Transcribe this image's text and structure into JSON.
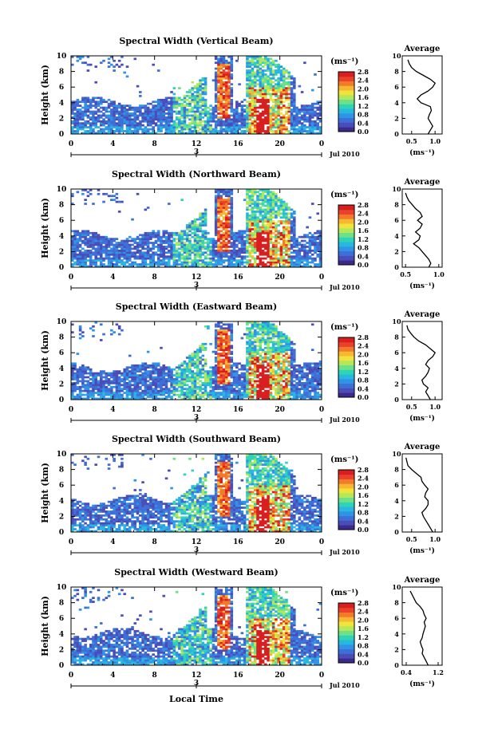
{
  "figure": {
    "xlabel": "Local Time",
    "ylabel": "Height (km)",
    "date_label": "Jul 2010",
    "day_label": "3",
    "avg_title": "Average",
    "colorbar_unit": "(ms⁻¹)",
    "avg_xlabel": "(ms⁻¹)"
  },
  "chart_data": [
    {
      "type": "heatmap",
      "title": "Spectral Width (Vertical Beam)",
      "xlabel": "Local Time",
      "ylabel": "Height (km)",
      "xticks": [
        "0",
        "4",
        "8",
        "12",
        "16",
        "20",
        "0"
      ],
      "xlim": [
        0,
        24
      ],
      "yticks": [
        "0",
        "2",
        "4",
        "6",
        "8",
        "10"
      ],
      "ylim": [
        0,
        10
      ],
      "colorbar": {
        "ticks": [
          "0.0",
          "0.4",
          "0.8",
          "1.2",
          "1.6",
          "2.0",
          "2.4",
          "2.8"
        ],
        "range": [
          0,
          2.8
        ]
      },
      "average": {
        "xticks": [
          "0.5",
          "1.0"
        ],
        "xlim": [
          0.3,
          1.15
        ],
        "x": [
          0.85,
          0.9,
          0.95,
          0.9,
          0.85,
          0.88,
          0.92,
          0.9,
          0.7,
          0.62,
          0.7,
          0.85,
          0.95,
          1.0,
          0.9,
          0.75,
          0.6,
          0.5,
          0.45,
          0.42
        ],
        "y": [
          0,
          0.5,
          1,
          1.5,
          2,
          2.5,
          3,
          3.5,
          4,
          4.5,
          5,
          5.5,
          6,
          6.5,
          7,
          7.5,
          8,
          8.5,
          9,
          9.5
        ]
      }
    },
    {
      "type": "heatmap",
      "title": "Spectral Width (Northward Beam)",
      "xlabel": "Local Time",
      "ylabel": "Height (km)",
      "xticks": [
        "0",
        "4",
        "8",
        "12",
        "16",
        "20",
        "0"
      ],
      "xlim": [
        0,
        24
      ],
      "yticks": [
        "0",
        "2",
        "4",
        "6",
        "8",
        "10"
      ],
      "ylim": [
        0,
        10
      ],
      "colorbar": {
        "ticks": [
          "0.0",
          "0.4",
          "0.8",
          "1.2",
          "1.6",
          "2.0",
          "2.4",
          "2.8"
        ],
        "range": [
          0,
          2.8
        ]
      },
      "average": {
        "xticks": [
          "0.5",
          "1.0"
        ],
        "xlim": [
          0.45,
          1.05
        ],
        "x": [
          0.85,
          0.88,
          0.85,
          0.8,
          0.75,
          0.7,
          0.62,
          0.7,
          0.72,
          0.65,
          0.72,
          0.75,
          0.68,
          0.75,
          0.72,
          0.65,
          0.6,
          0.55,
          0.52,
          0.5
        ],
        "y": [
          0,
          0.5,
          1,
          1.5,
          2,
          2.5,
          3,
          3.5,
          4,
          4.5,
          5,
          5.5,
          6,
          6.5,
          7,
          7.5,
          8,
          8.5,
          9,
          9.5
        ]
      }
    },
    {
      "type": "heatmap",
      "title": "Spectral Width (Eastward Beam)",
      "xlabel": "Local Time",
      "ylabel": "Height (km)",
      "xticks": [
        "0",
        "4",
        "8",
        "12",
        "16",
        "20",
        "0"
      ],
      "xlim": [
        0,
        24
      ],
      "yticks": [
        "0",
        "2",
        "4",
        "6",
        "8",
        "10"
      ],
      "ylim": [
        0,
        10
      ],
      "colorbar": {
        "ticks": [
          "0.0",
          "0.4",
          "0.8",
          "1.2",
          "1.6",
          "2.0",
          "2.4",
          "2.8"
        ],
        "range": [
          0,
          2.8
        ]
      },
      "average": {
        "xticks": [
          "0.5",
          "1.0"
        ],
        "xlim": [
          0.3,
          1.15
        ],
        "x": [
          0.9,
          0.85,
          0.8,
          0.85,
          0.75,
          0.72,
          0.8,
          0.85,
          0.88,
          0.8,
          0.85,
          0.95,
          1.0,
          0.9,
          0.8,
          0.65,
          0.55,
          0.48,
          0.42,
          0.4
        ],
        "y": [
          0,
          0.5,
          1,
          1.5,
          2,
          2.5,
          3,
          3.5,
          4,
          4.5,
          5,
          5.5,
          6,
          6.5,
          7,
          7.5,
          8,
          8.5,
          9,
          9.5
        ]
      }
    },
    {
      "type": "heatmap",
      "title": "Spectral Width (Southward Beam)",
      "xlabel": "Local Time",
      "ylabel": "Height (km)",
      "xticks": [
        "0",
        "4",
        "8",
        "12",
        "16",
        "20",
        "0"
      ],
      "xlim": [
        0,
        24
      ],
      "yticks": [
        "0",
        "2",
        "4",
        "6",
        "8",
        "10"
      ],
      "ylim": [
        0,
        10
      ],
      "colorbar": {
        "ticks": [
          "0.0",
          "0.4",
          "0.8",
          "1.2",
          "1.6",
          "2.0",
          "2.4",
          "2.8"
        ],
        "range": [
          0,
          2.8
        ]
      },
      "average": {
        "xticks": [
          "0.5",
          "1.0"
        ],
        "xlim": [
          0.3,
          1.15
        ],
        "x": [
          0.95,
          0.9,
          0.85,
          0.8,
          0.75,
          0.72,
          0.8,
          0.85,
          0.85,
          0.78,
          0.8,
          0.85,
          0.78,
          0.72,
          0.7,
          0.6,
          0.5,
          0.42,
          0.4,
          0.38
        ],
        "y": [
          0,
          0.5,
          1,
          1.5,
          2,
          2.5,
          3,
          3.5,
          4,
          4.5,
          5,
          5.5,
          6,
          6.5,
          7,
          7.5,
          8,
          8.5,
          9,
          9.5
        ]
      }
    },
    {
      "type": "heatmap",
      "title": "Spectral Width (Westward Beam)",
      "xlabel": "Local Time",
      "ylabel": "Height (km)",
      "xticks": [
        "0",
        "4",
        "8",
        "12",
        "16",
        "20",
        "0"
      ],
      "xlim": [
        0,
        24
      ],
      "yticks": [
        "0",
        "2",
        "4",
        "6",
        "8",
        "10"
      ],
      "ylim": [
        0,
        10
      ],
      "colorbar": {
        "ticks": [
          "0.0",
          "0.4",
          "0.8",
          "1.2",
          "1.6",
          "2.0",
          "2.4",
          "2.8"
        ],
        "range": [
          0,
          2.8
        ]
      },
      "average": {
        "xticks": [
          "0.4",
          "1.2"
        ],
        "xlim": [
          0.3,
          1.3
        ],
        "x": [
          0.95,
          0.9,
          0.85,
          0.8,
          0.82,
          0.78,
          0.75,
          0.8,
          0.82,
          0.85,
          0.88,
          0.85,
          0.9,
          0.85,
          0.82,
          0.75,
          0.65,
          0.6,
          0.55,
          0.5
        ],
        "y": [
          0,
          0.5,
          1,
          1.5,
          2,
          2.5,
          3,
          3.5,
          4,
          4.5,
          5,
          5.5,
          6,
          6.5,
          7,
          7.5,
          8,
          8.5,
          9,
          9.5
        ]
      }
    }
  ]
}
